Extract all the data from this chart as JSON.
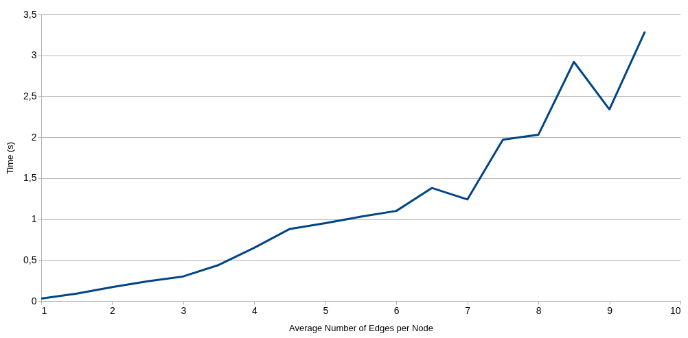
{
  "chart_data": {
    "type": "line",
    "xlabel": "Average Number of Edges per Node",
    "ylabel": "Time (s)",
    "x": [
      1,
      1.5,
      2,
      2.5,
      3,
      3.5,
      4,
      4.5,
      5,
      5.5,
      6,
      6.5,
      7,
      7.5,
      8,
      8.5,
      9,
      9.5
    ],
    "series": [
      {
        "color": "#004586",
        "values": [
          0.03,
          0.09,
          0.17,
          0.24,
          0.3,
          0.44,
          0.65,
          0.88,
          0.95,
          1.03,
          1.1,
          1.38,
          1.24,
          1.97,
          2.03,
          2.92,
          2.34,
          3.29
        ]
      }
    ],
    "xlim": [
      1,
      10
    ],
    "xticks": [
      1,
      2,
      3,
      4,
      5,
      6,
      7,
      8,
      9,
      10
    ],
    "ylim": [
      0,
      3.5
    ],
    "yticks": [
      0,
      {
        "value": 0.5,
        "label": "0,5"
      },
      1,
      {
        "value": 1.5,
        "label": "1,5"
      },
      2,
      {
        "value": 2.5,
        "label": "2,5"
      },
      3,
      {
        "value": 3.5,
        "label": "3,5"
      }
    ],
    "grid": "y",
    "legend": false,
    "marker": "none",
    "line_style": "solid"
  }
}
